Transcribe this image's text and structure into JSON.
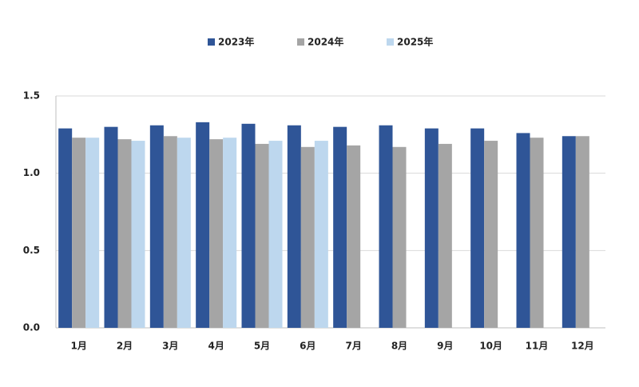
{
  "chart_data": {
    "type": "bar",
    "categories": [
      "1月",
      "2月",
      "3月",
      "4月",
      "5月",
      "6月",
      "7月",
      "8月",
      "9月",
      "10月",
      "11月",
      "12月"
    ],
    "series": [
      {
        "name": "2023年",
        "color": "#2f5597",
        "values": [
          1.29,
          1.3,
          1.31,
          1.33,
          1.32,
          1.31,
          1.3,
          1.31,
          1.29,
          1.29,
          1.26,
          1.24
        ]
      },
      {
        "name": "2024年",
        "color": "#a5a5a5",
        "values": [
          1.23,
          1.22,
          1.24,
          1.22,
          1.19,
          1.17,
          1.18,
          1.17,
          1.19,
          1.21,
          1.23,
          1.24
        ]
      },
      {
        "name": "2025年",
        "color": "#bdd7ee",
        "values": [
          1.23,
          1.21,
          1.23,
          1.23,
          1.21,
          1.21,
          null,
          null,
          null,
          null,
          null,
          null
        ]
      }
    ],
    "ylim": [
      0,
      1.5
    ],
    "yticks": [
      {
        "value": 0,
        "label": "0.0"
      },
      0.5,
      {
        "value": 1,
        "label": "1.0"
      },
      1.5
    ],
    "grid": true,
    "legend": "top"
  }
}
